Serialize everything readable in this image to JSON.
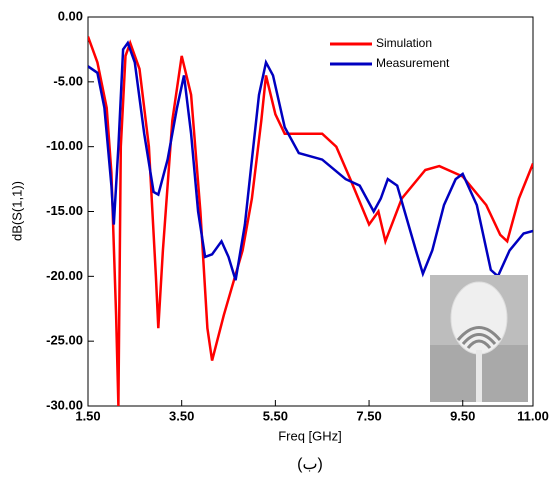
{
  "chart_data": {
    "type": "line",
    "xlabel": "Freq [GHz]",
    "ylabel": "dB(S(1,1))",
    "caption": "(ب)",
    "xlim": [
      1.5,
      11
    ],
    "ylim": [
      -30,
      0
    ],
    "xticks": [
      {
        "value": 1.5,
        "label": "1.50"
      },
      {
        "value": 3.5,
        "label": "3.50"
      },
      {
        "value": 5.5,
        "label": "5.50"
      },
      {
        "value": 7.5,
        "label": "7.50"
      },
      {
        "value": 9.5,
        "label": "9.50"
      },
      {
        "value": 11,
        "label": "11.00"
      }
    ],
    "yticks": [
      {
        "value": -30,
        "label": "-30.00"
      },
      {
        "value": -25,
        "label": "-25.00"
      },
      {
        "value": -20,
        "label": "-20.00"
      },
      {
        "value": -15,
        "label": "-15.00"
      },
      {
        "value": -10,
        "label": "-10.00"
      },
      {
        "value": -5,
        "label": "-5.00"
      },
      {
        "value": 0,
        "label": "0.00"
      }
    ],
    "legend": "top-right",
    "series": [
      {
        "name": "Simulation",
        "color": "#ff0000",
        "x": [
          1.5,
          1.7,
          1.9,
          2.0,
          2.1,
          2.15,
          2.2,
          2.3,
          2.4,
          2.6,
          2.8,
          2.95,
          3.0,
          3.1,
          3.3,
          3.5,
          3.7,
          3.9,
          4.05,
          4.15,
          4.4,
          4.8,
          5.0,
          5.2,
          5.3,
          5.5,
          5.7,
          6.0,
          6.5,
          6.8,
          7.1,
          7.5,
          7.7,
          7.85,
          8.2,
          8.7,
          9.0,
          9.5,
          10.0,
          10.3,
          10.45,
          10.7,
          11.0
        ],
        "values": [
          -1.5,
          -3.5,
          -7,
          -12,
          -23,
          -30,
          -10,
          -3,
          -2,
          -4,
          -10,
          -20,
          -24,
          -18,
          -8,
          -3,
          -6,
          -15,
          -24,
          -26.5,
          -23,
          -18,
          -14,
          -8,
          -4.5,
          -7.5,
          -9,
          -9,
          -9,
          -10,
          -12.5,
          -16,
          -15,
          -17.3,
          -14,
          -11.8,
          -11.5,
          -12.3,
          -14.5,
          -16.8,
          -17.3,
          -14,
          -11.3
        ]
      },
      {
        "name": "Measurement",
        "color": "#0000c0",
        "x": [
          1.5,
          1.7,
          1.85,
          2.0,
          2.05,
          2.15,
          2.25,
          2.35,
          2.5,
          2.7,
          2.9,
          3.0,
          3.2,
          3.4,
          3.55,
          3.7,
          3.85,
          4.0,
          4.15,
          4.35,
          4.5,
          4.65,
          4.85,
          5.0,
          5.15,
          5.3,
          5.45,
          5.7,
          6.0,
          6.5,
          7.0,
          7.3,
          7.6,
          7.75,
          7.9,
          8.1,
          8.5,
          8.65,
          8.85,
          9.1,
          9.35,
          9.5,
          9.8,
          10.1,
          10.25,
          10.5,
          10.8,
          11.0
        ],
        "values": [
          -3.8,
          -4.3,
          -7,
          -13,
          -16,
          -10,
          -2.5,
          -2,
          -3.5,
          -9,
          -13.5,
          -13.7,
          -11,
          -7,
          -4.5,
          -9,
          -15,
          -18.5,
          -18.3,
          -17.3,
          -18.5,
          -20.3,
          -16,
          -11,
          -6,
          -3.5,
          -4.5,
          -8.5,
          -10.5,
          -11,
          -12.5,
          -13,
          -15,
          -14,
          -12.5,
          -13,
          -18,
          -19.8,
          -18,
          -14.5,
          -12.5,
          -12.1,
          -14.5,
          -19.5,
          -20,
          -18,
          -16.7,
          -16.5
        ]
      }
    ]
  }
}
